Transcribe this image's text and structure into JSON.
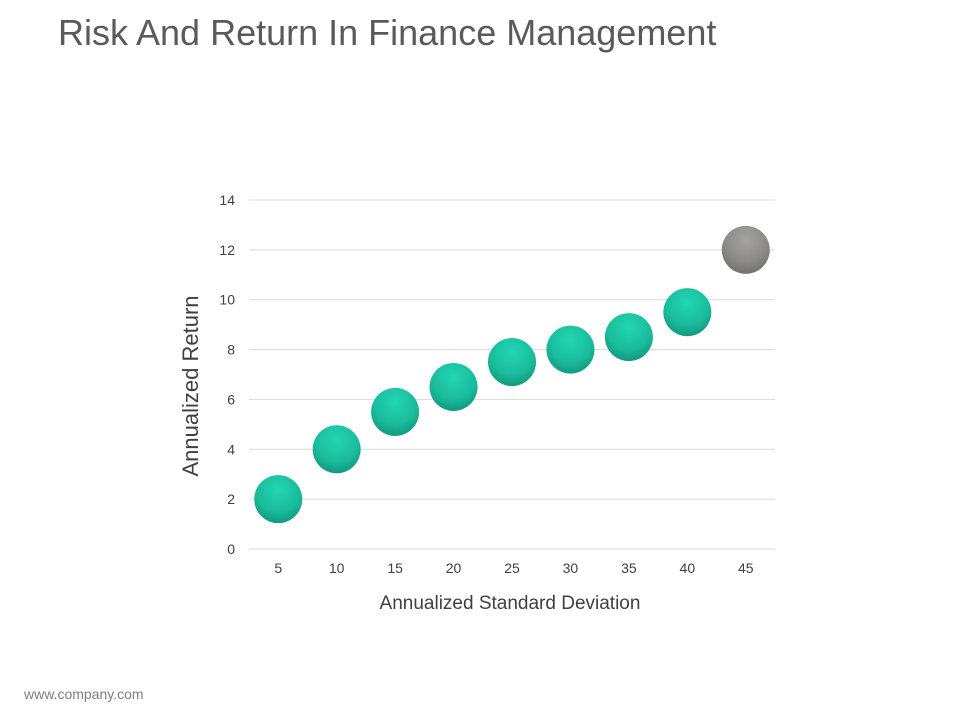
{
  "slide": {
    "title": "Risk And Return In Finance Management",
    "footer": "www.company.com"
  },
  "chart_data": {
    "type": "scatter",
    "xlabel": "Annualized Standard Deviation",
    "ylabel": "Annualized Return",
    "xlim": [
      2.5,
      47.5
    ],
    "ylim": [
      0,
      14
    ],
    "x_ticks": [
      5,
      10,
      15,
      20,
      25,
      30,
      35,
      40,
      45
    ],
    "y_ticks": [
      0,
      2,
      4,
      6,
      8,
      10,
      12,
      14
    ],
    "grid": true,
    "legend": "none",
    "points": [
      {
        "x": 5,
        "y": 2,
        "color": "#1ABC9C"
      },
      {
        "x": 10,
        "y": 4,
        "color": "#1ABC9C"
      },
      {
        "x": 15,
        "y": 5.5,
        "color": "#1ABC9C"
      },
      {
        "x": 20,
        "y": 6.5,
        "color": "#1ABC9C"
      },
      {
        "x": 25,
        "y": 7.5,
        "color": "#1ABC9C"
      },
      {
        "x": 30,
        "y": 8,
        "color": "#1ABC9C"
      },
      {
        "x": 35,
        "y": 8.5,
        "color": "#1ABC9C"
      },
      {
        "x": 40,
        "y": 9.5,
        "color": "#1ABC9C"
      },
      {
        "x": 45,
        "y": 12,
        "color": "#8C8C8C"
      }
    ],
    "gridline_color": "#D9D9D9"
  }
}
